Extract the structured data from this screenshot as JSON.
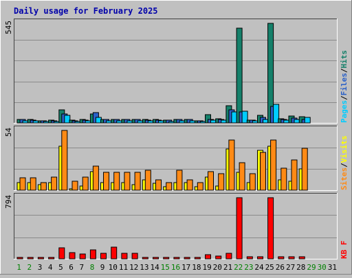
{
  "colors": {
    "background": "#c0c0c0",
    "panel": "#c0c0c0",
    "grid": "#8a8a8a",
    "title": "#0000aa",
    "pages": "#00ccff",
    "files": "#2a60c8",
    "hits": "#15806a",
    "visits": "#ffff00",
    "sites": "#ff8a15",
    "kbytes": "#ff0000",
    "weekend_label": "#008000",
    "day_label": "#000000"
  },
  "chart_data": [
    {
      "type": "bar",
      "title": "Daily usage for February 2025",
      "max_label": "545",
      "ymax": 545,
      "legend": [
        {
          "text": "Pages",
          "color": "#00ccff"
        },
        {
          "text": "/",
          "color": "#000000"
        },
        {
          "text": "Files",
          "color": "#2a60c8"
        },
        {
          "text": "/",
          "color": "#000000"
        },
        {
          "text": "Hits",
          "color": "#15806a"
        }
      ],
      "categories": [
        "1",
        "2",
        "3",
        "4",
        "5",
        "6",
        "7",
        "8",
        "9",
        "10",
        "11",
        "12",
        "13",
        "14",
        "15",
        "16",
        "17",
        "18",
        "19",
        "20",
        "21",
        "22",
        "23",
        "24",
        "25",
        "26",
        "27",
        "28",
        "29",
        "30",
        "31"
      ],
      "series": [
        {
          "name": "Hits",
          "color": "#15806a",
          "values": [
            20,
            18,
            12,
            14,
            70,
            14,
            20,
            50,
            20,
            20,
            20,
            20,
            18,
            18,
            16,
            20,
            20,
            12,
            45,
            24,
            95,
            520,
            16,
            40,
            545,
            24,
            38,
            34,
            0,
            0,
            0
          ]
        },
        {
          "name": "Files",
          "color": "#2a60c8",
          "values": [
            18,
            16,
            10,
            12,
            50,
            12,
            16,
            55,
            18,
            18,
            18,
            18,
            16,
            16,
            14,
            18,
            18,
            10,
            20,
            20,
            70,
            60,
            14,
            30,
            90,
            20,
            25,
            20,
            0,
            0,
            0
          ]
        },
        {
          "name": "Pages",
          "color": "#00ccff",
          "values": [
            10,
            10,
            6,
            8,
            40,
            8,
            10,
            30,
            10,
            10,
            10,
            10,
            10,
            10,
            8,
            10,
            10,
            6,
            15,
            15,
            60,
            65,
            10,
            20,
            100,
            15,
            20,
            30,
            0,
            0,
            0
          ]
        }
      ]
    },
    {
      "type": "bar",
      "max_label": "54",
      "ymax": 54,
      "legend": [
        {
          "text": "Sites",
          "color": "#ff8a15"
        },
        {
          "text": "/",
          "color": "#000000"
        },
        {
          "text": "Visits",
          "color": "#ffff00"
        }
      ],
      "categories": [
        "1",
        "2",
        "3",
        "4",
        "5",
        "6",
        "7",
        "8",
        "9",
        "10",
        "11",
        "12",
        "13",
        "14",
        "15",
        "16",
        "17",
        "18",
        "19",
        "20",
        "21",
        "22",
        "23",
        "24",
        "25",
        "26",
        "27",
        "28",
        "29",
        "30",
        "31"
      ],
      "series": [
        {
          "name": "Visits",
          "color": "#ffff00",
          "values": [
            7,
            7,
            5,
            7,
            40,
            1,
            4,
            17,
            7,
            7,
            7,
            5,
            9,
            6,
            3,
            7,
            7,
            3,
            12,
            4,
            37,
            16,
            7,
            36,
            40,
            9,
            8,
            19,
            0,
            0,
            0
          ]
        },
        {
          "name": "Sites",
          "color": "#ff8a15",
          "values": [
            11,
            11,
            7,
            12,
            54,
            8,
            12,
            22,
            16,
            16,
            16,
            16,
            18,
            9,
            7,
            18,
            9,
            7,
            17,
            15,
            45,
            25,
            15,
            34,
            45,
            20,
            27,
            38,
            0,
            0,
            0
          ]
        }
      ]
    },
    {
      "type": "bar",
      "max_label": "794",
      "ymax": 794,
      "legend": [
        {
          "text": "KB F",
          "color": "#ff0000"
        }
      ],
      "categories": [
        "1",
        "2",
        "3",
        "4",
        "5",
        "6",
        "7",
        "8",
        "9",
        "10",
        "11",
        "12",
        "13",
        "14",
        "15",
        "16",
        "17",
        "18",
        "19",
        "20",
        "21",
        "22",
        "23",
        "24",
        "25",
        "26",
        "27",
        "28",
        "29",
        "30",
        "31"
      ],
      "series": [
        {
          "name": "KB F",
          "color": "#ff0000",
          "values": [
            20,
            20,
            15,
            10,
            140,
            80,
            60,
            120,
            70,
            150,
            70,
            70,
            20,
            15,
            15,
            20,
            20,
            15,
            50,
            40,
            70,
            794,
            30,
            30,
            794,
            30,
            30,
            30,
            0,
            0,
            0
          ]
        }
      ]
    }
  ],
  "day_labels": [
    {
      "text": "1",
      "weekend": true
    },
    {
      "text": "2",
      "weekend": true
    },
    {
      "text": "3",
      "weekend": false
    },
    {
      "text": "4",
      "weekend": false
    },
    {
      "text": "5",
      "weekend": false
    },
    {
      "text": "6",
      "weekend": false
    },
    {
      "text": "7",
      "weekend": false
    },
    {
      "text": "8",
      "weekend": true
    },
    {
      "text": "9",
      "weekend": false
    },
    {
      "text": "10",
      "weekend": false
    },
    {
      "text": "11",
      "weekend": false
    },
    {
      "text": "12",
      "weekend": false
    },
    {
      "text": "13",
      "weekend": false
    },
    {
      "text": "14",
      "weekend": false
    },
    {
      "text": "15",
      "weekend": true
    },
    {
      "text": "16",
      "weekend": true
    },
    {
      "text": "17",
      "weekend": false
    },
    {
      "text": "18",
      "weekend": false
    },
    {
      "text": "19",
      "weekend": false
    },
    {
      "text": "20",
      "weekend": false
    },
    {
      "text": "21",
      "weekend": false
    },
    {
      "text": "22",
      "weekend": true
    },
    {
      "text": "23",
      "weekend": true
    },
    {
      "text": "24",
      "weekend": false
    },
    {
      "text": "25",
      "weekend": false
    },
    {
      "text": "26",
      "weekend": false
    },
    {
      "text": "27",
      "weekend": false
    },
    {
      "text": "28",
      "weekend": false
    },
    {
      "text": "29",
      "weekend": true
    },
    {
      "text": "30",
      "weekend": true
    },
    {
      "text": "31",
      "weekend": false
    }
  ]
}
